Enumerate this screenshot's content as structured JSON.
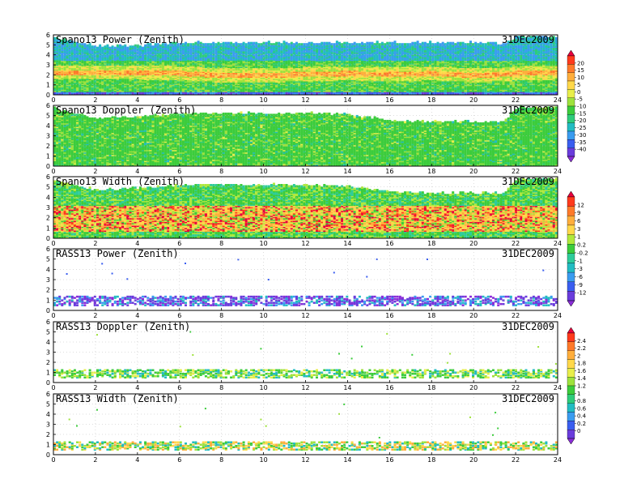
{
  "chart_data": [
    {
      "type": "heatmap",
      "title": "Spano13 Power (Zenith)",
      "date": "31DEC2009",
      "xlim": [
        0,
        24
      ],
      "ylim": [
        0,
        6
      ],
      "x_ticks": [
        "0",
        "2",
        "4",
        "6",
        "8",
        "10",
        "12",
        "14",
        "16",
        "18",
        "20",
        "22",
        "24"
      ],
      "y_ticks": [
        "0",
        "1",
        "2",
        "3",
        "4",
        "5",
        "6"
      ],
      "colorbar": "A",
      "style": "power",
      "profile": {
        "hours": [
          0,
          2,
          4,
          6,
          8,
          10,
          12,
          14,
          16,
          18,
          20,
          21.4,
          22,
          24
        ],
        "top_km": [
          5.6,
          4.8,
          4.8,
          5.1,
          5.1,
          5.1,
          5.1,
          5.1,
          5.1,
          5.1,
          5.1,
          5.0,
          5.7,
          5.7
        ],
        "band_km": [
          2.2,
          2.2,
          2.2,
          2.1,
          1.9,
          1.9,
          2.0,
          2.1,
          2.0,
          2.1,
          1.9,
          2.0,
          2.1,
          2.2
        ]
      }
    },
    {
      "type": "heatmap",
      "title": "Spano13 Doppler (Zenith)",
      "date": "31DEC2009",
      "xlim": [
        0,
        24
      ],
      "ylim": [
        0,
        6
      ],
      "x_ticks": [
        "0",
        "2",
        "4",
        "6",
        "8",
        "10",
        "12",
        "14",
        "16",
        "18",
        "20",
        "22",
        "24"
      ],
      "y_ticks": [
        "0",
        "1",
        "2",
        "3",
        "4",
        "5",
        "6"
      ],
      "colorbar": "A",
      "style": "doppler",
      "profile": {
        "hours": [
          0,
          2,
          4,
          6,
          8,
          10,
          12,
          14,
          16,
          18,
          20,
          21.4,
          22,
          24
        ],
        "top_km": [
          5.6,
          4.6,
          4.8,
          5.1,
          5.1,
          5.1,
          5.1,
          5.0,
          4.4,
          4.3,
          4.3,
          4.3,
          5.7,
          5.7
        ]
      }
    },
    {
      "type": "heatmap",
      "title": "Spano13 Width (Zenith)",
      "date": "31DEC2009",
      "xlim": [
        0,
        24
      ],
      "ylim": [
        0,
        6
      ],
      "x_ticks": [
        "0",
        "2",
        "4",
        "6",
        "8",
        "10",
        "12",
        "14",
        "16",
        "18",
        "20",
        "22",
        "24"
      ],
      "y_ticks": [
        "0",
        "1",
        "2",
        "3",
        "4",
        "5",
        "6"
      ],
      "colorbar": "B",
      "style": "width",
      "profile": {
        "hours": [
          0,
          2,
          4,
          6,
          8,
          10,
          12,
          14,
          16,
          18,
          20,
          21.4,
          22,
          24
        ],
        "top_km": [
          5.6,
          4.6,
          4.8,
          5.1,
          5.1,
          5.1,
          5.1,
          5.0,
          4.4,
          4.3,
          4.3,
          4.3,
          5.7,
          5.7
        ]
      }
    },
    {
      "type": "heatmap",
      "title": "RASS13 Power (Zenith)",
      "date": "31DEC2009",
      "xlim": [
        0,
        24
      ],
      "ylim": [
        0,
        6
      ],
      "x_ticks": [
        "0",
        "2",
        "4",
        "6",
        "8",
        "10",
        "12",
        "14",
        "16",
        "18",
        "20",
        "22",
        "24"
      ],
      "y_ticks": [
        "0",
        "1",
        "2",
        "3",
        "4",
        "5",
        "6"
      ],
      "colorbar": "B",
      "style": "rass_power",
      "profile": {
        "hours": [
          0,
          24
        ],
        "top_km": [
          1.3,
          1.3
        ]
      }
    },
    {
      "type": "heatmap",
      "title": "RASS13 Doppler (Zenith)",
      "date": "31DEC2009",
      "xlim": [
        0,
        24
      ],
      "ylim": [
        0,
        6
      ],
      "x_ticks": [
        "0",
        "2",
        "4",
        "6",
        "8",
        "10",
        "12",
        "14",
        "16",
        "18",
        "20",
        "22",
        "24"
      ],
      "y_ticks": [
        "0",
        "1",
        "2",
        "3",
        "4",
        "5",
        "6"
      ],
      "colorbar": "C",
      "style": "rass",
      "profile": {
        "hours": [
          0,
          24
        ],
        "top_km": [
          1.2,
          1.2
        ]
      }
    },
    {
      "type": "heatmap",
      "title": "RASS13 Width (Zenith)",
      "date": "31DEC2009",
      "xlim": [
        0,
        24
      ],
      "ylim": [
        0,
        6
      ],
      "x_ticks": [
        "0",
        "2",
        "4",
        "6",
        "8",
        "10",
        "12",
        "14",
        "16",
        "18",
        "20",
        "22",
        "24"
      ],
      "y_ticks": [
        "0",
        "1",
        "2",
        "3",
        "4",
        "5",
        "6"
      ],
      "colorbar": "C",
      "style": "rass_width",
      "profile": {
        "hours": [
          0,
          24
        ],
        "top_km": [
          1.2,
          1.2
        ]
      }
    }
  ],
  "colorbars": {
    "A": {
      "labels": [
        "20",
        "15",
        "10",
        "5",
        "0",
        "-5",
        "-10",
        "-15",
        "-20",
        "-25",
        "-30",
        "-35",
        "-40"
      ],
      "colors": [
        "#e8003c",
        "#ff3a1c",
        "#ff7a2a",
        "#ffae3c",
        "#ffd84a",
        "#e8ee4a",
        "#9ee23c",
        "#3ccc3c",
        "#2ecc7a",
        "#22bcc2",
        "#3a9cf0",
        "#3a5ef0",
        "#6a3cdc",
        "#8a2cd8"
      ]
    },
    "B": {
      "labels": [
        "12",
        "9",
        "6",
        "3",
        "1",
        "0.2",
        "-0.2",
        "-1",
        "-3",
        "-6",
        "-9",
        "-12"
      ],
      "colors": [
        "#e8003c",
        "#ff3a1c",
        "#ff7a2a",
        "#ffae3c",
        "#ffd84a",
        "#b0e83c",
        "#3ccc3c",
        "#2ecc9a",
        "#22bcc2",
        "#3a9cf0",
        "#3a5ef0",
        "#6a3cdc",
        "#8a2cd8"
      ]
    },
    "C": {
      "labels": [
        "2.4",
        "2.2",
        "2",
        "1.8",
        "1.6",
        "1.4",
        "1.2",
        "1",
        "0.8",
        "0.6",
        "0.4",
        "0.2",
        "0"
      ],
      "colors": [
        "#e8003c",
        "#ff3a1c",
        "#ff7a2a",
        "#ffae3c",
        "#ffd84a",
        "#e8ee4a",
        "#9ee23c",
        "#3ccc3c",
        "#2ecc7a",
        "#22bcc2",
        "#3a9cf0",
        "#3a5ef0",
        "#6a3cdc",
        "#8a2cd8"
      ]
    }
  }
}
